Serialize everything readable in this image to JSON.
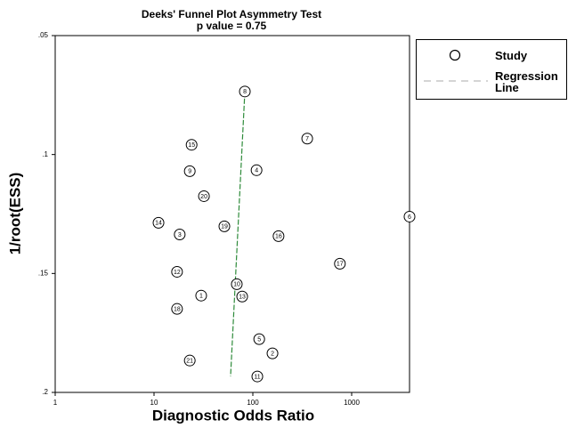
{
  "chart_data": {
    "type": "scatter",
    "title": "Deeks' Funnel Plot Asymmetry Test",
    "subtitle": "p value =  0.75",
    "x_label": "Diagnostic Odds Ratio",
    "y_label": "1/root(ESS)",
    "x_log": true,
    "y_inverted": true,
    "xlim": [
      1,
      3850
    ],
    "xticks": [
      1,
      10,
      100,
      1000
    ],
    "ylim": [
      0.05,
      0.2
    ],
    "yticks": [
      {
        "value": 0.05,
        "label": ".05"
      },
      {
        "value": 0.1,
        "label": ".1"
      },
      {
        "value": 0.15,
        "label": ".15"
      },
      {
        "value": 0.2,
        "label": ".2"
      }
    ],
    "legend": "right",
    "series": [
      {
        "name": "Study",
        "color": "#000000",
        "labels": [
          "8",
          "7",
          "15",
          "9",
          "4",
          "20",
          "6",
          "14",
          "19",
          "3",
          "16",
          "17",
          "12",
          "10",
          "1",
          "13",
          "18",
          "5",
          "2",
          "21",
          "11"
        ],
        "x": [
          83,
          355,
          24,
          23,
          109,
          32,
          3850,
          11.1,
          51.5,
          18.2,
          182,
          760,
          17.1,
          68.8,
          30,
          78,
          17.1,
          116,
          158,
          23,
          111
        ],
        "values": [
          0.0735,
          0.0933,
          0.0959,
          0.107,
          0.1066,
          0.1175,
          0.1261,
          0.1287,
          0.1302,
          0.1336,
          0.1343,
          0.1459,
          0.1493,
          0.1545,
          0.1593,
          0.1597,
          0.1649,
          0.1776,
          0.1836,
          0.1866,
          0.1933
        ]
      },
      {
        "name": "Regression Line",
        "color": "#2e8b3a",
        "x": [
          83,
          59.5
        ],
        "values": [
          0.0735,
          0.1933
        ]
      }
    ]
  }
}
